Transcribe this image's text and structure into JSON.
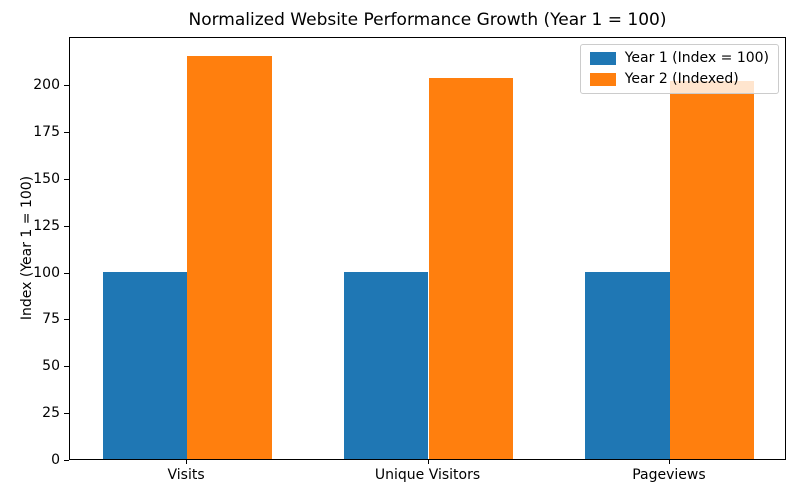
{
  "chart_data": {
    "type": "bar",
    "title": "Normalized Website Performance Growth (Year 1 = 100)",
    "xlabel": "",
    "ylabel": "Index (Year 1 = 100)",
    "categories": [
      "Visits",
      "Unique Visitors",
      "Pageviews"
    ],
    "series": [
      {
        "name": "Year 1 (Index = 100)",
        "color": "#1f77b4",
        "values": [
          100,
          100,
          100
        ]
      },
      {
        "name": "Year 2 (Indexed)",
        "color": "#ff7f0e",
        "values": [
          214.8,
          203.0,
          201.7
        ]
      }
    ],
    "ylim": [
      0,
      225.6
    ],
    "yticks": [
      0,
      25,
      50,
      75,
      100,
      125,
      150,
      175,
      200
    ],
    "legend_position": "upper right",
    "grid": false,
    "bar_width": 0.35,
    "spine_color": "#000000",
    "legend_border_color": "#cccccc"
  }
}
